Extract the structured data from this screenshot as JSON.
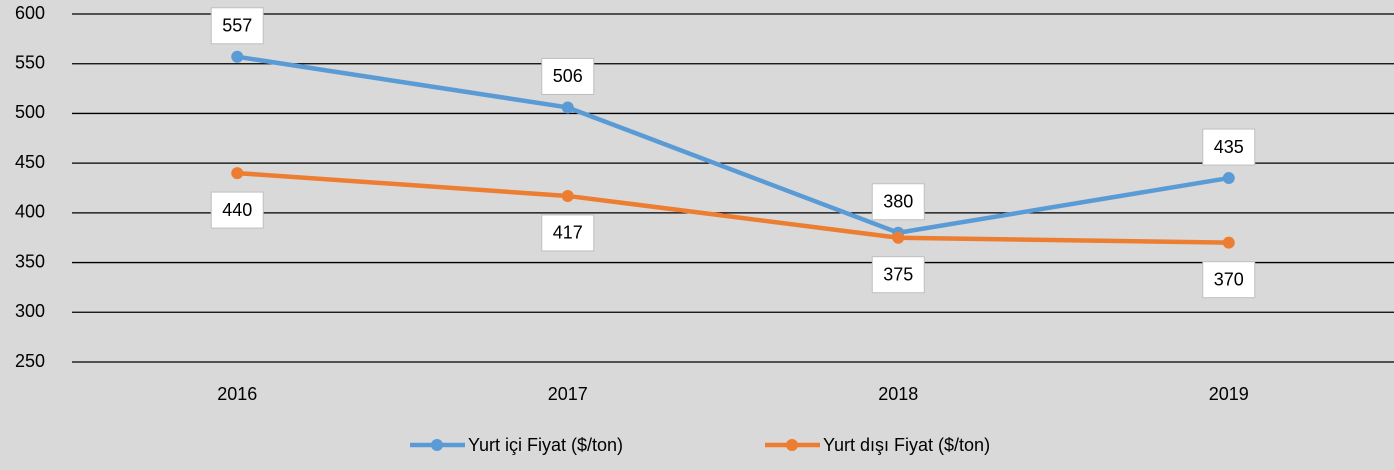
{
  "chart_data": {
    "type": "line",
    "categories": [
      "2016",
      "2017",
      "2018",
      "2019"
    ],
    "series": [
      {
        "name": "Yurt içi Fiyat ($/ton)",
        "color": "#5b9bd5",
        "values": [
          557,
          506,
          380,
          435
        ]
      },
      {
        "name": "Yurt dışı Fiyat ($/ton)",
        "color": "#ed7d31",
        "values": [
          440,
          417,
          375,
          370
        ]
      }
    ],
    "ylim": [
      250,
      600
    ],
    "yticks": [
      250,
      300,
      350,
      400,
      450,
      500,
      550,
      600
    ],
    "grid": true,
    "legend": "bottom"
  }
}
